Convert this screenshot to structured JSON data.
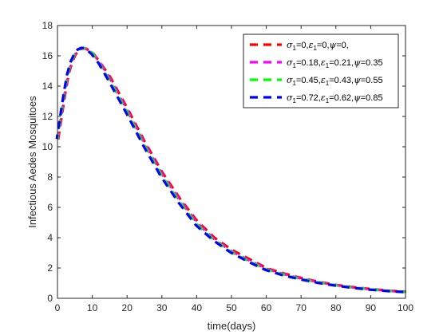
{
  "chart_data": {
    "type": "line",
    "xlabel": "time(days)",
    "ylabel": "Infectious Aedes Mosquitoes",
    "xlim": [
      0,
      100
    ],
    "ylim": [
      0,
      18
    ],
    "xticks": [
      0,
      10,
      20,
      30,
      40,
      50,
      60,
      70,
      80,
      90,
      100
    ],
    "yticks": [
      0,
      2,
      4,
      6,
      8,
      10,
      12,
      14,
      16,
      18
    ],
    "grid": false,
    "legend_position": "top-right",
    "x": [
      0,
      1,
      2,
      3,
      4,
      5,
      6,
      7,
      8,
      10,
      12,
      15,
      20,
      25,
      30,
      35,
      40,
      45,
      50,
      55,
      60,
      65,
      70,
      75,
      80,
      85,
      90,
      95,
      100
    ],
    "series": [
      {
        "name_parts": [
          {
            "sym": "σ",
            "sub": "1",
            "txt": "=0,"
          },
          {
            "sym": "ε",
            "sub": "1",
            "txt": "=0,"
          },
          {
            "sym": "ψ",
            "sub": "",
            "txt": "=0,"
          }
        ],
        "color": "#ff0000",
        "values": [
          10.5,
          12.0,
          13.5,
          14.8,
          15.6,
          16.1,
          16.4,
          16.5,
          16.5,
          16.2,
          15.6,
          14.6,
          12.5,
          10.3,
          8.3,
          6.6,
          5.1,
          4.0,
          3.2,
          2.6,
          2.0,
          1.65,
          1.35,
          1.1,
          0.9,
          0.75,
          0.63,
          0.52,
          0.45
        ]
      },
      {
        "name_parts": [
          {
            "sym": "σ",
            "sub": "1",
            "txt": "=0.18,"
          },
          {
            "sym": "ε",
            "sub": "1",
            "txt": "=0.21,"
          },
          {
            "sym": "ψ",
            "sub": "",
            "txt": "=0.35"
          }
        ],
        "color": "#ff00ff",
        "values": [
          10.5,
          12.0,
          13.5,
          14.8,
          15.6,
          16.1,
          16.4,
          16.5,
          16.5,
          16.2,
          15.6,
          14.5,
          12.4,
          10.2,
          8.2,
          6.5,
          5.0,
          3.9,
          3.1,
          2.5,
          1.95,
          1.6,
          1.3,
          1.07,
          0.87,
          0.72,
          0.6,
          0.5,
          0.43
        ]
      },
      {
        "name_parts": [
          {
            "sym": "σ",
            "sub": "1",
            "txt": "=0.45,"
          },
          {
            "sym": "ε",
            "sub": "1",
            "txt": "=0.43,"
          },
          {
            "sym": "ψ",
            "sub": "",
            "txt": "=0.55"
          }
        ],
        "color": "#00ff00",
        "values": [
          10.5,
          12.0,
          13.5,
          14.8,
          15.6,
          16.1,
          16.4,
          16.5,
          16.5,
          16.2,
          15.5,
          14.4,
          12.3,
          10.1,
          8.1,
          6.4,
          4.9,
          3.85,
          3.05,
          2.45,
          1.9,
          1.55,
          1.27,
          1.04,
          0.85,
          0.7,
          0.58,
          0.48,
          0.41
        ]
      },
      {
        "name_parts": [
          {
            "sym": "σ",
            "sub": "1",
            "txt": "=0.72,"
          },
          {
            "sym": "ε",
            "sub": "1",
            "txt": "=0.62,"
          },
          {
            "sym": "ψ",
            "sub": "",
            "txt": "=0.85"
          }
        ],
        "color": "#0000ff",
        "values": [
          10.5,
          12.0,
          13.5,
          14.8,
          15.6,
          16.1,
          16.4,
          16.5,
          16.5,
          16.1,
          15.5,
          14.3,
          12.2,
          10.0,
          8.0,
          6.3,
          4.8,
          3.8,
          3.0,
          2.4,
          1.85,
          1.5,
          1.23,
          1.0,
          0.82,
          0.67,
          0.55,
          0.46,
          0.39
        ]
      }
    ]
  }
}
